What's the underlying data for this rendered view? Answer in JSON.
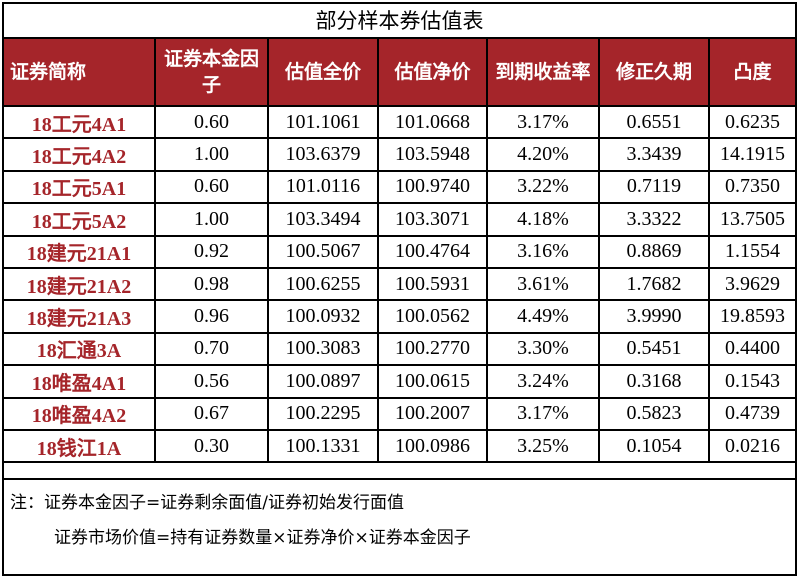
{
  "title": "部分样本券估值表",
  "headers": [
    "证券简称",
    "证券本金因子",
    "估值全价",
    "估值净价",
    "到期收益率",
    "修正久期",
    "凸度"
  ],
  "rows": [
    {
      "name": "18工元4A1",
      "factor": "0.60",
      "full": "101.1061",
      "clean": "101.0668",
      "ytm": "3.17%",
      "duration": "0.6551",
      "convexity": "0.6235"
    },
    {
      "name": "18工元4A2",
      "factor": "1.00",
      "full": "103.6379",
      "clean": "103.5948",
      "ytm": "4.20%",
      "duration": "3.3439",
      "convexity": "14.1915"
    },
    {
      "name": "18工元5A1",
      "factor": "0.60",
      "full": "101.0116",
      "clean": "100.9740",
      "ytm": "3.22%",
      "duration": "0.7119",
      "convexity": "0.7350"
    },
    {
      "name": "18工元5A2",
      "factor": "1.00",
      "full": "103.3494",
      "clean": "103.3071",
      "ytm": "4.18%",
      "duration": "3.3322",
      "convexity": "13.7505"
    },
    {
      "name": "18建元21A1",
      "factor": "0.92",
      "full": "100.5067",
      "clean": "100.4764",
      "ytm": "3.16%",
      "duration": "0.8869",
      "convexity": "1.1554"
    },
    {
      "name": "18建元21A2",
      "factor": "0.98",
      "full": "100.6255",
      "clean": "100.5931",
      "ytm": "3.61%",
      "duration": "1.7682",
      "convexity": "3.9629"
    },
    {
      "name": "18建元21A3",
      "factor": "0.96",
      "full": "100.0932",
      "clean": "100.0562",
      "ytm": "4.49%",
      "duration": "3.9990",
      "convexity": "19.8593"
    },
    {
      "name": "18汇通3A",
      "factor": "0.70",
      "full": "100.3083",
      "clean": "100.2770",
      "ytm": "3.30%",
      "duration": "0.5451",
      "convexity": "0.4400"
    },
    {
      "name": "18唯盈4A1",
      "factor": "0.56",
      "full": "100.0897",
      "clean": "100.0615",
      "ytm": "3.24%",
      "duration": "0.3168",
      "convexity": "0.1543"
    },
    {
      "name": "18唯盈4A2",
      "factor": "0.67",
      "full": "100.2295",
      "clean": "100.2007",
      "ytm": "3.17%",
      "duration": "0.5823",
      "convexity": "0.4739"
    },
    {
      "name": "18钱江1A",
      "factor": "0.30",
      "full": "100.1331",
      "clean": "100.0986",
      "ytm": "3.25%",
      "duration": "0.1054",
      "convexity": "0.0216"
    }
  ],
  "notes": {
    "line1": "注：证券本金因子=证券剩余面值/证券初始发行面值",
    "line2": "证券市场价值=持有证券数量×证券净价×证券本金因子"
  },
  "colors": {
    "header_bg": "#a5252a",
    "header_text": "#ffffff",
    "name_text": "#a5252a",
    "border": "#000000"
  }
}
